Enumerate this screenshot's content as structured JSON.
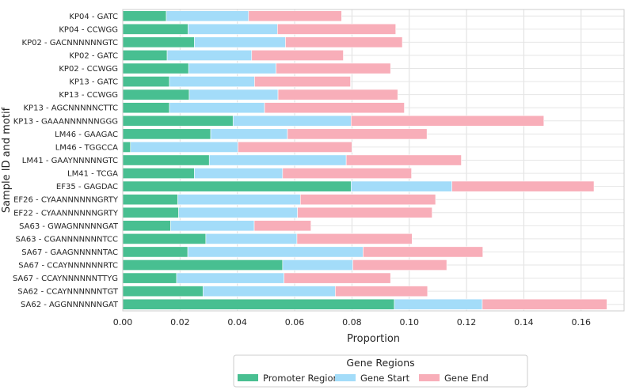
{
  "chart_data": {
    "type": "bar",
    "orientation": "horizontal",
    "stacked": true,
    "xlabel": "Proportion",
    "ylabel": "Sample ID and motif",
    "xlim": [
      0,
      0.175
    ],
    "xticks": [
      "0.00",
      "0.02",
      "0.04",
      "0.06",
      "0.08",
      "0.10",
      "0.12",
      "0.14",
      "0.16"
    ],
    "grid": true,
    "legend": {
      "title": "Gene Regions",
      "position": "bottom-center"
    },
    "categories": [
      "KP04 - GATC",
      "KP04 - CCWGG",
      "KP02 - GACNNNNNNGTC",
      "KP02 - GATC",
      "KP02 - CCWGG",
      "KP13 - GATC",
      "KP13 - CCWGG",
      "KP13 - AGCNNNNNCTTC",
      "KP13 - GAAANNNNNNGGG",
      "LM46 - GAAGAC",
      "LM46 - TGGCCA",
      "LM41 - GAAYNNNNNGTC",
      "LM41 - TCGA",
      "EF35 - GAGDAC",
      "EF26 - CYAANNNNNNGRTY",
      "EF22 - CYAANNNNNNGRTY",
      "SA63 - GWAGNNNNNGAT",
      "SA63 - CGANNNNNNNTCC",
      "SA67 - GAAGNNNNNTAC",
      "SA67 - CCAYNNNNNNRTC",
      "SA67 - CCAYNNNNNNTTYG",
      "SA62 - CCAYNNNNNNTGT",
      "SA62 - AGGNNNNNNGAT"
    ],
    "series": [
      {
        "name": "Promoter Region",
        "color": "#48bf91",
        "values": [
          0.0152,
          0.0228,
          0.025,
          0.0155,
          0.023,
          0.0163,
          0.0232,
          0.0163,
          0.0385,
          0.0307,
          0.0027,
          0.0302,
          0.025,
          0.0797,
          0.0192,
          0.0195,
          0.0167,
          0.029,
          0.0227,
          0.0558,
          0.0188,
          0.028,
          0.0948
        ]
      },
      {
        "name": "Gene Start",
        "color": "#a3dcf9",
        "values": [
          0.0287,
          0.0312,
          0.0318,
          0.0295,
          0.0305,
          0.0297,
          0.031,
          0.0332,
          0.0412,
          0.0268,
          0.0375,
          0.0478,
          0.0308,
          0.0352,
          0.0428,
          0.0415,
          0.0292,
          0.0318,
          0.0612,
          0.0245,
          0.0375,
          0.0462,
          0.0307
        ]
      },
      {
        "name": "Gene End",
        "color": "#f8aeb9",
        "values": [
          0.0325,
          0.0413,
          0.0408,
          0.032,
          0.04,
          0.0335,
          0.0418,
          0.0488,
          0.0673,
          0.0487,
          0.0398,
          0.0402,
          0.045,
          0.0496,
          0.0472,
          0.047,
          0.0198,
          0.0402,
          0.0418,
          0.0328,
          0.0372,
          0.0322,
          0.0435
        ]
      }
    ]
  }
}
